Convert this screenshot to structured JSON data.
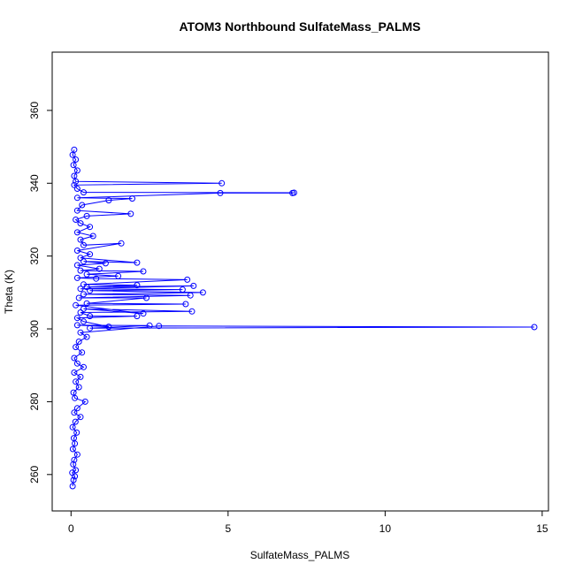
{
  "chart_data": {
    "type": "scatter",
    "title": "ATOM3 Northbound SulfateMass_PALMS",
    "xlabel": "SulfateMass_PALMS",
    "ylabel": "Theta (K)",
    "xlim": [
      -0.6,
      15.2
    ],
    "ylim": [
      250,
      376
    ],
    "x_ticks": [
      0,
      5,
      10,
      15
    ],
    "y_ticks": [
      260,
      280,
      300,
      320,
      340,
      360
    ],
    "grid": false,
    "legend": "none",
    "connected": true,
    "marker": "open-circle",
    "color": "#0000ff",
    "series": [
      {
        "points": [
          [
            0.05,
            256.8
          ],
          [
            0.08,
            258.5
          ],
          [
            0.12,
            259.5
          ],
          [
            0.04,
            260.5
          ],
          [
            0.15,
            261.2
          ],
          [
            0.07,
            262.8
          ],
          [
            0.1,
            264.0
          ],
          [
            0.2,
            265.5
          ],
          [
            0.06,
            267.0
          ],
          [
            0.12,
            268.5
          ],
          [
            0.09,
            270.0
          ],
          [
            0.18,
            271.5
          ],
          [
            0.05,
            273.0
          ],
          [
            0.14,
            274.5
          ],
          [
            0.3,
            275.8
          ],
          [
            0.1,
            277.0
          ],
          [
            0.2,
            278.2
          ],
          [
            0.45,
            280.0
          ],
          [
            0.12,
            281.0
          ],
          [
            0.08,
            282.5
          ],
          [
            0.25,
            284.0
          ],
          [
            0.15,
            285.5
          ],
          [
            0.3,
            286.8
          ],
          [
            0.1,
            288.0
          ],
          [
            0.4,
            289.5
          ],
          [
            0.2,
            290.5
          ],
          [
            0.1,
            292.0
          ],
          [
            0.35,
            293.5
          ],
          [
            0.15,
            295.0
          ],
          [
            0.25,
            296.5
          ],
          [
            0.5,
            297.8
          ],
          [
            0.3,
            299.0
          ],
          [
            2.8,
            300.8
          ],
          [
            14.75,
            300.5
          ],
          [
            0.6,
            300.2
          ],
          [
            2.5,
            300.9
          ],
          [
            0.2,
            301.0
          ],
          [
            1.2,
            300.6
          ],
          [
            0.4,
            302.0
          ],
          [
            0.2,
            303.0
          ],
          [
            2.1,
            303.5
          ],
          [
            0.6,
            303.5
          ],
          [
            0.3,
            304.5
          ],
          [
            3.85,
            304.8
          ],
          [
            0.4,
            305.5
          ],
          [
            2.3,
            304.2
          ],
          [
            0.15,
            306.5
          ],
          [
            3.65,
            306.8
          ],
          [
            0.5,
            307.0
          ],
          [
            2.4,
            308.5
          ],
          [
            0.25,
            308.5
          ],
          [
            3.8,
            309.2
          ],
          [
            0.4,
            309.5
          ],
          [
            4.2,
            310.0
          ],
          [
            0.6,
            310.5
          ],
          [
            3.55,
            310.8
          ],
          [
            0.3,
            311.0
          ],
          [
            3.9,
            311.8
          ],
          [
            0.5,
            311.5
          ],
          [
            2.1,
            312.0
          ],
          [
            0.4,
            312.2
          ],
          [
            3.7,
            313.5
          ],
          [
            0.8,
            313.8
          ],
          [
            0.2,
            314.0
          ],
          [
            1.5,
            314.5
          ],
          [
            0.5,
            315.0
          ],
          [
            2.3,
            315.8
          ],
          [
            0.3,
            316.0
          ],
          [
            0.9,
            316.5
          ],
          [
            0.2,
            317.5
          ],
          [
            1.1,
            318.0
          ],
          [
            0.4,
            318.5
          ],
          [
            2.1,
            318.2
          ],
          [
            0.3,
            319.5
          ],
          [
            0.6,
            320.5
          ],
          [
            0.2,
            321.5
          ],
          [
            1.6,
            323.5
          ],
          [
            0.4,
            323.0
          ],
          [
            0.3,
            324.5
          ],
          [
            0.7,
            325.5
          ],
          [
            0.2,
            326.5
          ],
          [
            0.6,
            328.0
          ],
          [
            0.3,
            329.0
          ],
          [
            0.15,
            330.0
          ],
          [
            0.5,
            331.0
          ],
          [
            1.9,
            331.6
          ],
          [
            0.2,
            332.5
          ],
          [
            0.35,
            334.0
          ],
          [
            1.2,
            335.3
          ],
          [
            1.95,
            335.8
          ],
          [
            0.2,
            336.0
          ],
          [
            4.75,
            337.3
          ],
          [
            7.05,
            337.3
          ],
          [
            7.1,
            337.4
          ],
          [
            0.4,
            337.5
          ],
          [
            0.2,
            338.5
          ],
          [
            0.1,
            339.5
          ],
          [
            4.8,
            340.0
          ],
          [
            0.15,
            340.5
          ],
          [
            0.1,
            342.0
          ],
          [
            0.2,
            343.5
          ],
          [
            0.08,
            345.0
          ],
          [
            0.15,
            346.5
          ],
          [
            0.05,
            347.8
          ],
          [
            0.1,
            349.2
          ]
        ]
      }
    ]
  }
}
